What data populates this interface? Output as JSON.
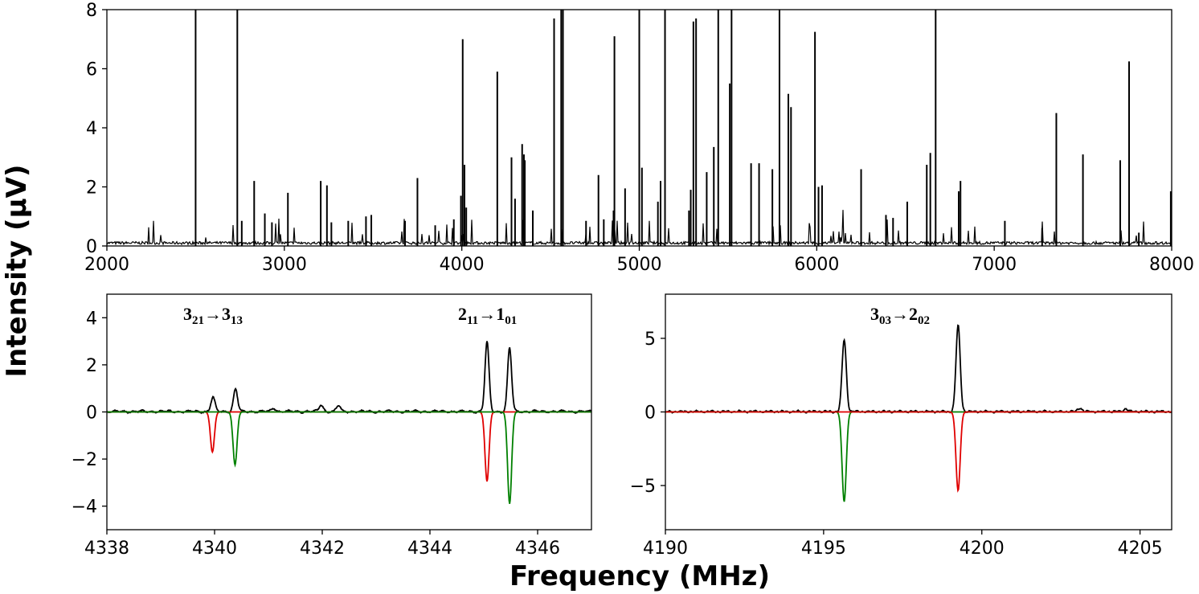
{
  "figure": {
    "ylabel": "Intensity (μV)",
    "xlabel": "Frequency (MHz)"
  },
  "chart_data": [
    {
      "type": "line",
      "panel": "top",
      "xlim": [
        2000,
        8000
      ],
      "ylim": [
        0,
        8
      ],
      "xticks": [
        "2000",
        "3000",
        "4000",
        "5000",
        "6000",
        "7000",
        "8000"
      ],
      "yticks": [
        "0",
        "2",
        "4",
        "6",
        "8"
      ],
      "series": [
        {
          "color": "#000000",
          "baseline": 0.15,
          "lines": [
            [
              2500,
              8
            ],
            [
              2735,
              8
            ],
            [
              2760,
              0.85
            ],
            [
              2830,
              2.2
            ],
            [
              2890,
              1.1
            ],
            [
              2930,
              0.8
            ],
            [
              3020,
              1.8
            ],
            [
              3205,
              2.2
            ],
            [
              3240,
              2.05
            ],
            [
              3265,
              0.8
            ],
            [
              3360,
              0.85
            ],
            [
              3460,
              1.0
            ],
            [
              3490,
              1.05
            ],
            [
              3680,
              0.85
            ],
            [
              3750,
              2.3
            ],
            [
              3850,
              0.7
            ],
            [
              3955,
              0.9
            ],
            [
              3995,
              1.7
            ],
            [
              4005,
              7.0
            ],
            [
              4015,
              2.75
            ],
            [
              4025,
              1.3
            ],
            [
              4200,
              5.9
            ],
            [
              4280,
              3.0
            ],
            [
              4300,
              1.6
            ],
            [
              4340,
              3.45
            ],
            [
              4350,
              3.1
            ],
            [
              4355,
              2.9
            ],
            [
              4400,
              1.2
            ],
            [
              4520,
              7.7
            ],
            [
              4560,
              8
            ],
            [
              4570,
              8
            ],
            [
              4700,
              0.85
            ],
            [
              4770,
              2.4
            ],
            [
              4800,
              0.9
            ],
            [
              4855,
              1.2
            ],
            [
              4860,
              7.1
            ],
            [
              4920,
              1.95
            ],
            [
              5000,
              8
            ],
            [
              5015,
              2.65
            ],
            [
              5105,
              1.5
            ],
            [
              5120,
              2.2
            ],
            [
              5145,
              8
            ],
            [
              5280,
              1.2
            ],
            [
              5290,
              1.9
            ],
            [
              5305,
              7.6
            ],
            [
              5320,
              7.7
            ],
            [
              5380,
              2.5
            ],
            [
              5420,
              3.35
            ],
            [
              5445,
              8
            ],
            [
              5510,
              5.5
            ],
            [
              5520,
              8
            ],
            [
              5630,
              2.8
            ],
            [
              5675,
              2.8
            ],
            [
              5750,
              2.6
            ],
            [
              5790,
              8
            ],
            [
              5840,
              5.15
            ],
            [
              5855,
              4.7
            ],
            [
              5990,
              7.25
            ],
            [
              6010,
              2.0
            ],
            [
              6030,
              2.05
            ],
            [
              6250,
              2.6
            ],
            [
              6390,
              1.05
            ],
            [
              6430,
              0.95
            ],
            [
              6510,
              1.5
            ],
            [
              6620,
              2.75
            ],
            [
              6640,
              3.15
            ],
            [
              6670,
              8
            ],
            [
              6800,
              1.85
            ],
            [
              6810,
              2.2
            ],
            [
              7060,
              0.85
            ],
            [
              7270,
              0.6
            ],
            [
              7350,
              4.5
            ],
            [
              7500,
              3.1
            ],
            [
              7710,
              2.9
            ],
            [
              7760,
              6.25
            ],
            [
              7815,
              0.45
            ],
            [
              7995,
              1.85
            ]
          ]
        }
      ]
    },
    {
      "type": "line",
      "panel": "bottom-left",
      "xlim": [
        4338,
        4347
      ],
      "ylim": [
        -5,
        5
      ],
      "xticks": [
        "4338",
        "4340",
        "4342",
        "4344",
        "4346"
      ],
      "yticks": [
        "4",
        "2",
        "0",
        "−2",
        "−4"
      ],
      "annotations": [
        {
          "main1": "3",
          "sub1": "21",
          "arrow": "→",
          "main2": "3",
          "sub2": "13"
        },
        {
          "main1": "2",
          "sub1": "11",
          "arrow": "→",
          "main2": "1",
          "sub2": "01"
        }
      ],
      "series": [
        {
          "color": "#000000",
          "peaks": [
            [
              4339.97,
              0.6
            ],
            [
              4340.39,
              0.95
            ],
            [
              4341.1,
              0.15
            ],
            [
              4341.98,
              0.28
            ],
            [
              4342.3,
              0.25
            ],
            [
              4345.06,
              2.95
            ],
            [
              4345.48,
              2.7
            ]
          ],
          "noise": 0.06
        },
        {
          "color": "#e00000",
          "peaks": [
            [
              4339.96,
              -1.7
            ],
            [
              4345.06,
              -2.95
            ]
          ]
        },
        {
          "color": "#008000",
          "peaks": [
            [
              4340.38,
              -2.25
            ],
            [
              4345.48,
              -3.9
            ]
          ]
        }
      ]
    },
    {
      "type": "line",
      "panel": "bottom-right",
      "xlim": [
        4190,
        4206
      ],
      "ylim": [
        -8,
        8
      ],
      "xticks": [
        "4190",
        "4195",
        "4200",
        "4205"
      ],
      "yticks": [
        "5",
        "0",
        "−5"
      ],
      "annotations": [
        {
          "main1": "3",
          "sub1": "03",
          "arrow": "→",
          "main2": "2",
          "sub2": "02"
        }
      ],
      "series": [
        {
          "color": "#000000",
          "peaks": [
            [
              4195.65,
              4.9
            ],
            [
              4199.25,
              5.85
            ],
            [
              4203.1,
              0.25
            ],
            [
              4204.55,
              0.2
            ]
          ],
          "noise": 0.08
        },
        {
          "color": "#008000",
          "peaks": [
            [
              4195.65,
              -6.1
            ]
          ]
        },
        {
          "color": "#e00000",
          "peaks": [
            [
              4199.25,
              -5.35
            ]
          ]
        }
      ]
    }
  ]
}
